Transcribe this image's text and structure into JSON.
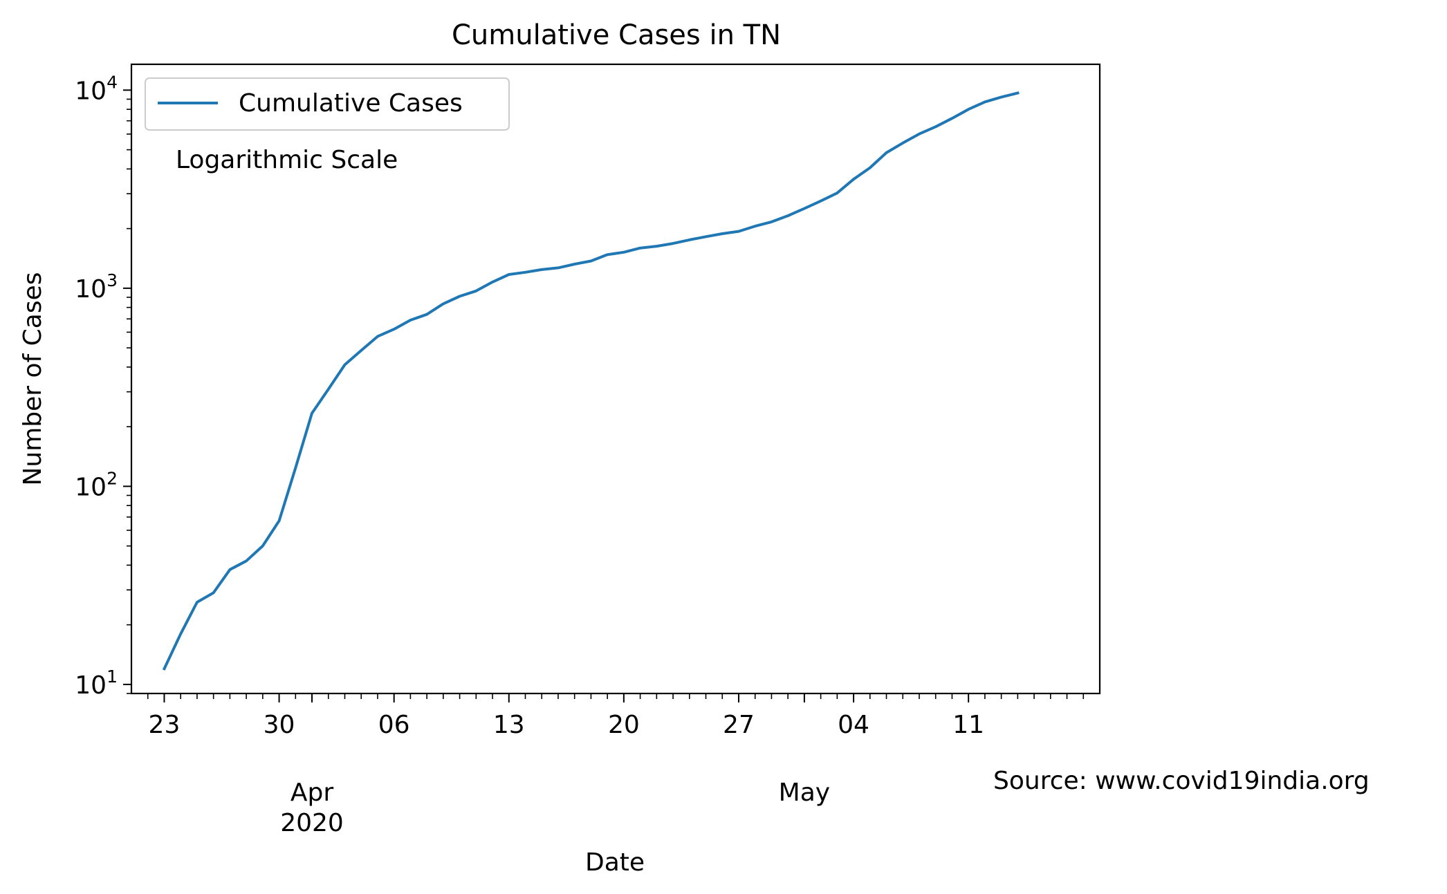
{
  "chart_data": {
    "type": "line",
    "title": "Cumulative Cases in TN",
    "xlabel": "Date",
    "ylabel": "Number of Cases",
    "yscale": "log",
    "ylim": [
      9,
      13500
    ],
    "xlim": [
      "2020-03-21",
      "2020-05-19"
    ],
    "grid": false,
    "legend_position": "top-left",
    "annotation": "Logarithmic Scale",
    "source_note": "Source: www.covid19india.org",
    "x_major_ticks": [
      {
        "date": "2020-03-23",
        "label": "23"
      },
      {
        "date": "2020-03-30",
        "label": "30"
      },
      {
        "date": "2020-04-06",
        "label": "06"
      },
      {
        "date": "2020-04-13",
        "label": "13"
      },
      {
        "date": "2020-04-20",
        "label": "20"
      },
      {
        "date": "2020-04-27",
        "label": "27"
      },
      {
        "date": "2020-05-04",
        "label": "04"
      },
      {
        "date": "2020-05-11",
        "label": "11"
      }
    ],
    "x_month_labels": [
      {
        "date": "2020-04-01",
        "lines": [
          "Apr",
          "2020"
        ]
      },
      {
        "date": "2020-05-01",
        "lines": [
          "May"
        ]
      }
    ],
    "y_ticks": [
      {
        "value": 10,
        "base": "10",
        "exp": "1"
      },
      {
        "value": 100,
        "base": "10",
        "exp": "2"
      },
      {
        "value": 1000,
        "base": "10",
        "exp": "3"
      },
      {
        "value": 10000,
        "base": "10",
        "exp": "4"
      }
    ],
    "series": [
      {
        "name": "Cumulative Cases",
        "color": "#1f77b4",
        "x": [
          "2020-03-23",
          "2020-03-24",
          "2020-03-25",
          "2020-03-26",
          "2020-03-27",
          "2020-03-28",
          "2020-03-29",
          "2020-03-30",
          "2020-03-31",
          "2020-04-01",
          "2020-04-02",
          "2020-04-03",
          "2020-04-04",
          "2020-04-05",
          "2020-04-06",
          "2020-04-07",
          "2020-04-08",
          "2020-04-09",
          "2020-04-10",
          "2020-04-11",
          "2020-04-12",
          "2020-04-13",
          "2020-04-14",
          "2020-04-15",
          "2020-04-16",
          "2020-04-17",
          "2020-04-18",
          "2020-04-19",
          "2020-04-20",
          "2020-04-21",
          "2020-04-22",
          "2020-04-23",
          "2020-04-24",
          "2020-04-25",
          "2020-04-26",
          "2020-04-27",
          "2020-04-28",
          "2020-04-29",
          "2020-04-30",
          "2020-05-01",
          "2020-05-02",
          "2020-05-03",
          "2020-05-04",
          "2020-05-05",
          "2020-05-06",
          "2020-05-07",
          "2020-05-08",
          "2020-05-09",
          "2020-05-10",
          "2020-05-11",
          "2020-05-12",
          "2020-05-13",
          "2020-05-14"
        ],
        "y": [
          12,
          18,
          26,
          29,
          38,
          42,
          50,
          67,
          124,
          234,
          309,
          411,
          485,
          571,
          621,
          690,
          738,
          834,
          911,
          969,
          1075,
          1173,
          1204,
          1242,
          1267,
          1323,
          1372,
          1477,
          1520,
          1596,
          1629,
          1683,
          1755,
          1821,
          1885,
          1937,
          2058,
          2162,
          2323,
          2526,
          2757,
          3023,
          3550,
          4058,
          4829,
          5409,
          6009,
          6535,
          7204,
          8002,
          8718,
          9227,
          9674
        ]
      }
    ]
  }
}
